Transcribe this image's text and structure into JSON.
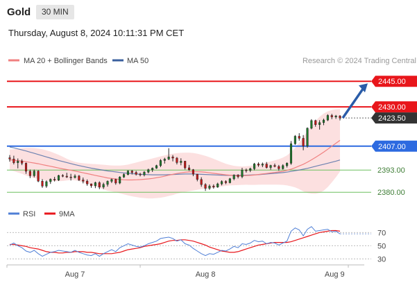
{
  "header": {
    "instrument": "Gold",
    "timeframe": "30 MIN",
    "timestamp": "Thursday, August 8, 2024 10:11:31 PM CET"
  },
  "chart_data": [
    {
      "type": "candlestick",
      "legend": [
        {
          "name": "MA 20 + Bollinger Bands",
          "color": "#f08080"
        },
        {
          "name": "MA 50",
          "color": "#3a5f9e"
        }
      ],
      "legend_placement": "top-left",
      "watermark": "Research © 2024 Trading Central",
      "ylim": [
        2374,
        2452
      ],
      "levels": [
        {
          "value": 2445.0,
          "label": "2445.00",
          "style": "resistance",
          "color": "#e8161b"
        },
        {
          "value": 2430.0,
          "label": "2430.00",
          "style": "resistance",
          "color": "#e8161b"
        },
        {
          "value": 2423.5,
          "label": "2423.50",
          "style": "last-price",
          "color": "#333333"
        },
        {
          "value": 2407.0,
          "label": "2407.00",
          "style": "pivot",
          "color": "#2d6ae0"
        },
        {
          "value": 2393.0,
          "label": "2393.00",
          "style": "support",
          "color": "#6cbf5e"
        },
        {
          "value": 2380.0,
          "label": "2380.00",
          "style": "support",
          "color": "#6cbf5e"
        }
      ],
      "forecast_arrow": {
        "from": 2423.5,
        "to": 2445.0,
        "color": "#2a5ca8"
      },
      "candles": [
        [
          2400.2,
          2401.8,
          2397.9,
          2399.5
        ],
        [
          2399.5,
          2401.4,
          2396.3,
          2397.3
        ],
        [
          2397.3,
          2399.8,
          2394.0,
          2398.2
        ],
        [
          2398.2,
          2399.3,
          2395.9,
          2397.0
        ],
        [
          2397.0,
          2397.4,
          2390.8,
          2392.3
        ],
        [
          2392.3,
          2393.3,
          2388.3,
          2389.7
        ],
        [
          2389.7,
          2393.3,
          2388.7,
          2392.4
        ],
        [
          2392.4,
          2392.9,
          2385.9,
          2386.5
        ],
        [
          2386.5,
          2387.7,
          2382.6,
          2383.6
        ],
        [
          2383.6,
          2386.9,
          2382.6,
          2386.2
        ],
        [
          2386.2,
          2388.1,
          2384.9,
          2387.6
        ],
        [
          2387.6,
          2389.0,
          2386.3,
          2387.1
        ],
        [
          2387.1,
          2390.2,
          2386.6,
          2389.8
        ],
        [
          2389.8,
          2390.6,
          2388.8,
          2389.4
        ],
        [
          2389.4,
          2391.4,
          2388.4,
          2388.9
        ],
        [
          2388.9,
          2390.8,
          2386.9,
          2388.6
        ],
        [
          2388.6,
          2390.5,
          2388.1,
          2389.5
        ],
        [
          2389.5,
          2390.1,
          2386.6,
          2387.2
        ],
        [
          2387.2,
          2388.6,
          2385.2,
          2386.5
        ],
        [
          2386.5,
          2387.5,
          2383.8,
          2384.9
        ],
        [
          2384.9,
          2385.1,
          2382.6,
          2383.8
        ],
        [
          2383.8,
          2386.2,
          2382.4,
          2385.6
        ],
        [
          2385.6,
          2386.4,
          2381.8,
          2383.0
        ],
        [
          2383.0,
          2385.6,
          2381.9,
          2384.6
        ],
        [
          2384.6,
          2386.9,
          2383.3,
          2386.4
        ],
        [
          2386.4,
          2388.0,
          2385.4,
          2387.5
        ],
        [
          2387.5,
          2387.9,
          2384.4,
          2385.4
        ],
        [
          2385.4,
          2389.4,
          2384.7,
          2388.9
        ],
        [
          2388.9,
          2391.0,
          2388.4,
          2390.4
        ],
        [
          2390.4,
          2392.9,
          2389.9,
          2392.4
        ],
        [
          2392.4,
          2393.0,
          2390.4,
          2391.6
        ],
        [
          2391.6,
          2392.5,
          2389.8,
          2390.6
        ],
        [
          2390.6,
          2391.4,
          2389.3,
          2390.2
        ],
        [
          2390.2,
          2392.4,
          2389.3,
          2391.8
        ],
        [
          2391.8,
          2393.8,
          2391.1,
          2393.2
        ],
        [
          2393.2,
          2394.5,
          2391.9,
          2394.1
        ],
        [
          2394.1,
          2396.1,
          2393.7,
          2395.6
        ],
        [
          2395.6,
          2399.4,
          2394.7,
          2398.6
        ],
        [
          2398.6,
          2400.2,
          2396.8,
          2399.4
        ],
        [
          2399.4,
          2405.8,
          2398.8,
          2400.7
        ],
        [
          2400.7,
          2401.8,
          2398.1,
          2400.0
        ],
        [
          2400.0,
          2400.6,
          2396.3,
          2397.4
        ],
        [
          2397.4,
          2399.9,
          2395.8,
          2398.2
        ],
        [
          2398.2,
          2398.4,
          2393.3,
          2394.3
        ],
        [
          2394.3,
          2396.0,
          2392.5,
          2393.2
        ],
        [
          2393.2,
          2393.6,
          2389.4,
          2390.6
        ],
        [
          2390.6,
          2390.7,
          2386.4,
          2387.5
        ],
        [
          2387.5,
          2388.8,
          2383.2,
          2384.5
        ],
        [
          2384.5,
          2385.3,
          2380.8,
          2382.3
        ],
        [
          2382.3,
          2384.6,
          2381.4,
          2383.6
        ],
        [
          2383.6,
          2384.6,
          2382.1,
          2383.0
        ],
        [
          2383.0,
          2385.6,
          2382.6,
          2384.9
        ],
        [
          2384.9,
          2387.0,
          2384.0,
          2386.3
        ],
        [
          2386.3,
          2387.0,
          2384.7,
          2385.6
        ],
        [
          2385.6,
          2388.4,
          2385.2,
          2387.9
        ],
        [
          2387.9,
          2390.5,
          2387.0,
          2390.0
        ],
        [
          2390.0,
          2390.6,
          2388.1,
          2389.1
        ],
        [
          2389.1,
          2394.3,
          2388.2,
          2393.0
        ],
        [
          2393.0,
          2393.9,
          2391.5,
          2392.8
        ],
        [
          2392.8,
          2394.4,
          2391.8,
          2393.8
        ],
        [
          2393.8,
          2397.2,
          2392.9,
          2396.6
        ],
        [
          2396.6,
          2397.5,
          2394.9,
          2395.9
        ],
        [
          2395.9,
          2397.4,
          2394.7,
          2396.5
        ],
        [
          2396.5,
          2397.7,
          2393.9,
          2394.5
        ],
        [
          2394.5,
          2396.1,
          2393.2,
          2395.7
        ],
        [
          2395.7,
          2396.8,
          2394.6,
          2395.1
        ],
        [
          2395.1,
          2396.0,
          2392.6,
          2393.8
        ],
        [
          2393.8,
          2396.4,
          2393.3,
          2395.6
        ],
        [
          2395.6,
          2397.5,
          2394.5,
          2397.0
        ],
        [
          2397.0,
          2410.0,
          2396.1,
          2408.4
        ],
        [
          2408.4,
          2413.5,
          2407.8,
          2412.8
        ],
        [
          2412.8,
          2414.6,
          2410.2,
          2411.6
        ],
        [
          2411.6,
          2413.5,
          2404.6,
          2407.1
        ],
        [
          2407.1,
          2418.0,
          2406.1,
          2417.5
        ],
        [
          2417.5,
          2422.8,
          2416.9,
          2422.0
        ],
        [
          2422.0,
          2422.5,
          2418.4,
          2419.6
        ],
        [
          2419.6,
          2422.2,
          2416.7,
          2420.8
        ],
        [
          2420.8,
          2423.1,
          2419.3,
          2422.3
        ],
        [
          2422.3,
          2425.7,
          2421.7,
          2425.0
        ],
        [
          2425.0,
          2425.9,
          2422.8,
          2424.1
        ],
        [
          2424.1,
          2425.3,
          2423.0,
          2424.7
        ],
        [
          2424.7,
          2425.2,
          2422.1,
          2423.5
        ]
      ],
      "ma20": [
        2399.0,
        2398.8,
        2398.5,
        2398.3,
        2397.9,
        2397.5,
        2397.1,
        2396.7,
        2396.2,
        2395.7,
        2395.2,
        2394.7,
        2394.2,
        2393.7,
        2393.3,
        2392.9,
        2392.4,
        2391.9,
        2391.4,
        2390.9,
        2390.4,
        2389.9,
        2389.4,
        2388.9,
        2388.4,
        2388.1,
        2387.8,
        2387.5,
        2387.3,
        2387.2,
        2387.2,
        2387.3,
        2387.4,
        2387.6,
        2387.8,
        2388.1,
        2388.5,
        2388.9,
        2389.4,
        2390.0,
        2390.5,
        2391.0,
        2391.4,
        2391.7,
        2391.9,
        2392.0,
        2392.0,
        2391.9,
        2391.7,
        2391.4,
        2391.1,
        2390.8,
        2390.5,
        2390.2,
        2390.0,
        2389.8,
        2389.7,
        2389.7,
        2389.8,
        2389.9,
        2390.1,
        2390.4,
        2390.7,
        2391.0,
        2391.3,
        2391.6,
        2391.9,
        2392.3,
        2392.8,
        2393.5,
        2394.4,
        2395.4,
        2396.4,
        2397.6,
        2399.0,
        2400.4,
        2401.9,
        2403.5,
        2405.2,
        2407.0,
        2408.7,
        2410.4
      ],
      "ma50": [
        2406.5,
        2406.0,
        2405.4,
        2404.8,
        2404.2,
        2403.5,
        2402.8,
        2402.1,
        2401.4,
        2400.7,
        2400.0,
        2399.3,
        2398.6,
        2398.0,
        2397.4,
        2396.8,
        2396.2,
        2395.6,
        2395.1,
        2394.6,
        2394.1,
        2393.7,
        2393.3,
        2392.9,
        2392.5,
        2392.2,
        2391.9,
        2391.6,
        2391.3,
        2391.1,
        2390.9,
        2390.7,
        2390.5,
        2390.4,
        2390.3,
        2390.2,
        2390.2,
        2390.2,
        2390.2,
        2390.3,
        2390.4,
        2390.5,
        2390.6,
        2390.7,
        2390.7,
        2390.7,
        2390.6,
        2390.5,
        2390.4,
        2390.3,
        2390.2,
        2390.1,
        2390.0,
        2389.9,
        2389.9,
        2389.9,
        2389.9,
        2389.9,
        2390.0,
        2390.1,
        2390.2,
        2390.3,
        2390.5,
        2390.7,
        2390.9,
        2391.1,
        2391.3,
        2391.5,
        2391.8,
        2392.2,
        2392.6,
        2393.0,
        2393.5,
        2394.0,
        2394.6,
        2395.2,
        2395.8,
        2396.4,
        2397.0,
        2397.6,
        2398.2,
        2398.9
      ],
      "bb_upper": [
        2405.0,
        2405.2,
        2405.5,
        2405.8,
        2406.0,
        2406.0,
        2405.9,
        2405.6,
        2405.2,
        2404.6,
        2403.8,
        2402.9,
        2401.9,
        2400.8,
        2399.6,
        2398.6,
        2397.8,
        2397.3,
        2397.0,
        2396.8,
        2396.6,
        2396.5,
        2396.3,
        2396.1,
        2395.9,
        2395.7,
        2395.6,
        2395.6,
        2395.8,
        2396.2,
        2396.8,
        2397.4,
        2398.0,
        2398.6,
        2399.2,
        2399.8,
        2400.4,
        2401.0,
        2401.6,
        2402.2,
        2402.6,
        2402.9,
        2403.1,
        2403.2,
        2403.2,
        2403.0,
        2402.6,
        2402.0,
        2401.3,
        2400.5,
        2399.6,
        2398.6,
        2397.6,
        2396.7,
        2396.0,
        2395.5,
        2395.2,
        2395.1,
        2395.2,
        2395.5,
        2395.9,
        2396.4,
        2396.9,
        2397.5,
        2398.1,
        2398.7,
        2399.4,
        2400.3,
        2401.6,
        2403.5,
        2406.0,
        2409.0,
        2412.3,
        2415.6,
        2418.8,
        2421.7,
        2424.2,
        2426.1,
        2427.4,
        2428.2,
        2428.6,
        2428.7
      ],
      "bb_lower": [
        2393.0,
        2392.4,
        2391.6,
        2390.8,
        2389.8,
        2389.0,
        2388.3,
        2387.8,
        2387.2,
        2386.8,
        2386.6,
        2386.5,
        2386.5,
        2386.6,
        2386.9,
        2387.2,
        2387.0,
        2386.5,
        2385.8,
        2385.0,
        2384.2,
        2383.3,
        2382.5,
        2381.7,
        2380.9,
        2380.5,
        2380.0,
        2379.4,
        2378.8,
        2378.2,
        2377.6,
        2377.2,
        2376.8,
        2376.6,
        2376.4,
        2376.4,
        2376.6,
        2376.8,
        2377.2,
        2377.8,
        2378.4,
        2379.1,
        2379.7,
        2380.2,
        2380.6,
        2381.0,
        2381.4,
        2381.8,
        2382.1,
        2382.3,
        2382.6,
        2383.0,
        2383.4,
        2383.7,
        2384.0,
        2384.1,
        2384.2,
        2384.3,
        2384.4,
        2384.3,
        2384.3,
        2384.4,
        2384.5,
        2384.5,
        2384.5,
        2384.5,
        2384.4,
        2384.3,
        2384.0,
        2383.5,
        2382.8,
        2381.8,
        2380.5,
        2379.6,
        2379.2,
        2379.1,
        2379.6,
        2380.9,
        2383.0,
        2385.8,
        2388.8,
        2392.1
      ]
    },
    {
      "type": "line",
      "legend": [
        {
          "name": "RSI",
          "color": "#4f7fd6"
        },
        {
          "name": "9MA",
          "color": "#e8161b"
        }
      ],
      "ylim": [
        22,
        84
      ],
      "ytick_labels": [
        "70",
        "50",
        "30"
      ],
      "ytick_values": [
        70,
        50,
        30
      ],
      "x_tick_labels": [
        "Aug 7",
        "Aug 8",
        "Aug 9"
      ],
      "x_tick_index": [
        16,
        48,
        79
      ],
      "rsi": [
        51,
        54,
        50,
        47,
        42,
        40,
        43,
        38,
        34,
        37,
        40,
        41,
        43,
        42,
        41,
        40,
        43,
        40,
        38,
        36,
        35,
        38,
        34,
        38,
        41,
        44,
        41,
        47,
        50,
        53,
        51,
        49,
        48,
        50,
        53,
        55,
        57,
        61,
        62,
        63,
        61,
        57,
        59,
        53,
        51,
        46,
        42,
        38,
        35,
        38,
        37,
        40,
        43,
        42,
        45,
        49,
        47,
        53,
        52,
        54,
        58,
        56,
        57,
        53,
        55,
        54,
        51,
        54,
        57,
        72,
        77,
        74,
        65,
        75,
        79,
        72,
        73,
        74,
        75,
        71,
        72,
        68
      ],
      "ma9": [
        52,
        52,
        51,
        50,
        49,
        47,
        46,
        45,
        43,
        41,
        40,
        40,
        39,
        39,
        40,
        40,
        41,
        41,
        41,
        40,
        40,
        39,
        38,
        38,
        38,
        38,
        39,
        40,
        42,
        44,
        45,
        46,
        47,
        49,
        50,
        51,
        52,
        53,
        55,
        57,
        58,
        58,
        59,
        59,
        58,
        57,
        55,
        53,
        51,
        48,
        46,
        44,
        42,
        41,
        40,
        40,
        41,
        43,
        45,
        47,
        49,
        51,
        52,
        53,
        54,
        55,
        55,
        55,
        55,
        56,
        58,
        60,
        62,
        64,
        66,
        68,
        70,
        71,
        72,
        73,
        73,
        72
      ]
    }
  ]
}
